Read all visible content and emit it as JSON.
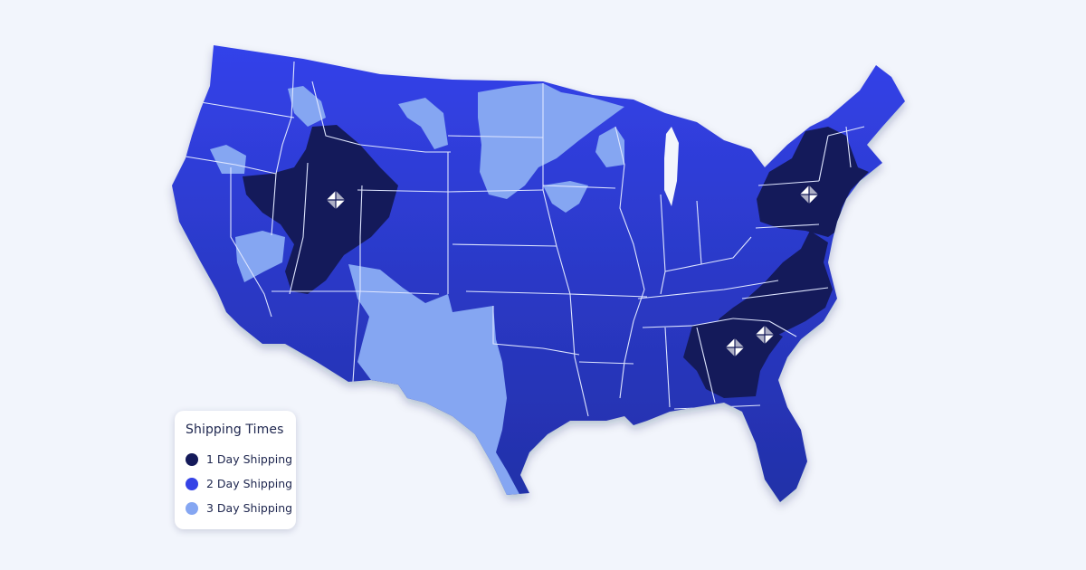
{
  "legend": {
    "title": "Shipping Times",
    "items": [
      {
        "label": "1 Day Shipping",
        "color": "#141a5a"
      },
      {
        "label": "2 Day Shipping",
        "color": "#3543e6"
      },
      {
        "label": "3 Day Shipping",
        "color": "#85a6f2"
      }
    ]
  },
  "map": {
    "background": "#f2f5fc",
    "border_color": "#dfe6ff",
    "warehouse_icon": "warehouse-diamond-icon",
    "warehouse_count": 4
  }
}
